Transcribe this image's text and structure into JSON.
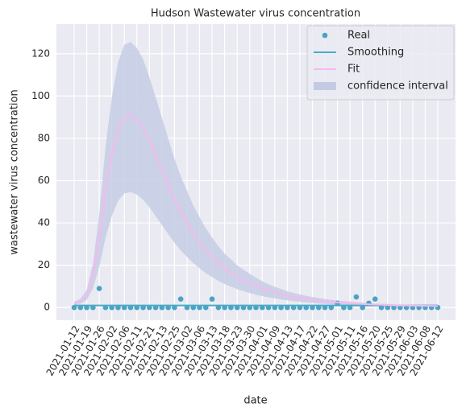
{
  "chart_data": {
    "type": "line",
    "title": "Hudson Wastewater virus concentration",
    "xlabel": "date",
    "ylabel": "wastewater virus concentration",
    "categories": [
      "2021-01-12",
      null,
      "2021-01-19",
      null,
      "2021-01-26",
      null,
      "2021-02-02",
      null,
      "2021-02-06",
      null,
      "2021-02-11",
      null,
      "2021-02-21",
      null,
      "2021-02-13",
      null,
      "2021-02-25",
      null,
      "2021-03-02",
      null,
      "2021-03-06",
      null,
      "2021-03-13",
      null,
      "2021-03-18",
      null,
      "2021-03-23",
      null,
      "2021-03-30",
      null,
      "2021-04-01",
      null,
      "2021-04-09",
      null,
      "2021-04-13",
      null,
      "2021-04-17",
      null,
      "2021-04-22",
      null,
      "2021-04-27",
      null,
      "2021-05-01",
      null,
      "2021-05-11",
      null,
      "2021-05-16",
      null,
      "2021-05-20",
      null,
      "2021-05-25",
      null,
      "2021-05-29",
      null,
      "2021-06-03",
      null,
      "2021-06-08",
      null,
      "2021-06-12"
    ],
    "ylim": [
      -6,
      134
    ],
    "yticks": [
      0,
      20,
      40,
      60,
      80,
      100,
      120
    ],
    "grid": true,
    "legend": "upper right",
    "series": [
      {
        "name": "Real",
        "kind": "scatter",
        "color": "#4ba3c3",
        "values": [
          0,
          0,
          0,
          0,
          9,
          0,
          0,
          0,
          0,
          0,
          0,
          0,
          0,
          0,
          0,
          0,
          0,
          4,
          0,
          0,
          0,
          0,
          4,
          0,
          0,
          0,
          0,
          0,
          0,
          0,
          0,
          0,
          0,
          0,
          0,
          0,
          0,
          0,
          0,
          0,
          0,
          0,
          2,
          0,
          0,
          5,
          0,
          2,
          4,
          0,
          0,
          0,
          0,
          0,
          0,
          0,
          0,
          0,
          0
        ]
      },
      {
        "name": "Smoothing",
        "kind": "line",
        "color": "#4aabc9",
        "values": [
          1,
          1,
          1,
          1,
          1,
          1,
          1,
          1,
          1,
          1,
          1,
          1,
          1,
          1,
          1,
          1,
          1,
          1,
          1,
          1,
          1,
          1,
          1,
          1,
          1,
          1,
          1,
          1,
          1,
          1,
          1,
          1,
          1,
          1,
          1,
          1,
          1,
          1,
          1,
          1,
          1,
          1,
          1,
          1,
          1,
          1,
          1,
          1,
          1,
          1,
          1,
          1,
          1,
          1,
          1,
          1,
          1,
          1,
          1
        ]
      },
      {
        "name": "Fit",
        "kind": "line",
        "color": "#f7b8f1",
        "values": [
          2,
          3,
          6,
          15,
          32,
          55,
          72,
          84,
          90,
          91,
          89,
          85,
          79,
          72,
          65,
          58,
          51,
          45,
          40,
          35,
          31,
          27,
          24,
          21,
          18.5,
          16.5,
          14.5,
          13,
          11.5,
          10.2,
          9,
          8,
          7.1,
          6.3,
          5.6,
          5,
          4.5,
          4,
          3.6,
          3.2,
          2.9,
          2.6,
          2.4,
          2.2,
          2,
          1.8,
          1.7,
          1.5,
          1.4,
          1.3,
          1.2,
          1.1,
          1,
          1,
          0.9,
          0.9,
          0.8,
          0.8,
          0.7
        ]
      },
      {
        "name": "confidence interval",
        "kind": "band",
        "color": "#c3cbe2",
        "upper": [
          2.8,
          4.1,
          8.3,
          20.7,
          44.2,
          75.9,
          99.4,
          115.9,
          124.2,
          125.6,
          122.8,
          117.3,
          109,
          99.4,
          89.7,
          80,
          70.4,
          62.1,
          55.2,
          48.3,
          42.8,
          37.3,
          33.1,
          29,
          25.5,
          22.8,
          20,
          17.9,
          15.9,
          14.1,
          12.4,
          11,
          9.8,
          8.7,
          7.7,
          6.9,
          6.2,
          5.5,
          5,
          4.4,
          4,
          3.6,
          3.3,
          3,
          2.8,
          2.5,
          2.3,
          2.1,
          1.9,
          1.8,
          1.7,
          1.5,
          1.4,
          1.4,
          1.2,
          1.2,
          1.1,
          1.1,
          1
        ],
        "lower": [
          1.2,
          1.8,
          3.6,
          9,
          19.2,
          33,
          43.2,
          50.4,
          54,
          54.6,
          53.4,
          51,
          47.4,
          43.2,
          39,
          34.8,
          30.6,
          27,
          24,
          21,
          18.6,
          16.2,
          14.4,
          12.6,
          11.1,
          9.9,
          8.7,
          7.8,
          6.9,
          6.1,
          5.4,
          4.8,
          4.3,
          3.8,
          3.4,
          3,
          2.7,
          2.4,
          2.2,
          1.9,
          1.7,
          1.6,
          1.4,
          1.3,
          1.2,
          1.1,
          1,
          0.9,
          0.8,
          0.8,
          0.7,
          0.7,
          0.6,
          0.6,
          0.5,
          0.5,
          0.5,
          0.5,
          0.4
        ]
      }
    ]
  }
}
